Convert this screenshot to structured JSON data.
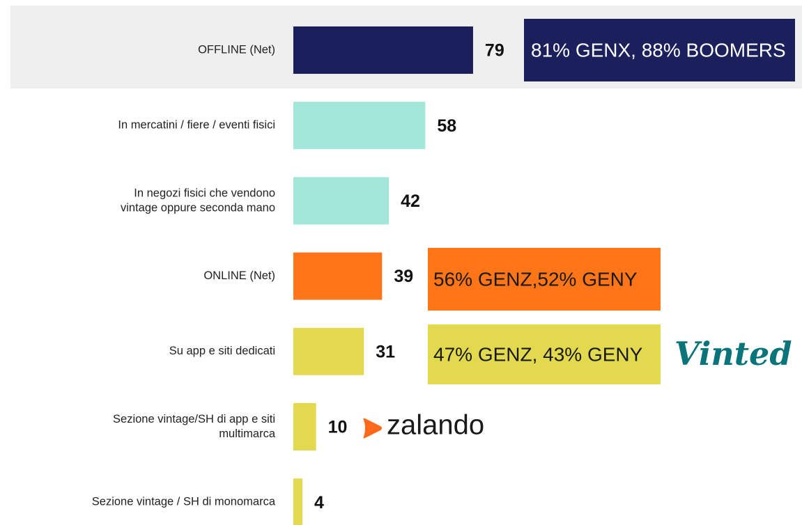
{
  "chart_data": {
    "type": "bar",
    "orientation": "horizontal",
    "categories": [
      [
        "OFFLINE (Net)"
      ],
      [
        "In mercatini / fiere / eventi fisici"
      ],
      [
        "In negozi fisici che vendono",
        "vintage oppure seconda mano"
      ],
      [
        "ONLINE (Net)"
      ],
      [
        "Su app e siti dedicati"
      ],
      [
        "Sezione vintage/SH di app e siti",
        "multimarca"
      ],
      [
        "Sezione vintage / SH di monomarca"
      ]
    ],
    "values": [
      79,
      58,
      42,
      39,
      31,
      10,
      4
    ],
    "colors": [
      "#1b1f5c",
      "#a3e6da",
      "#a3e6da",
      "#ff7518",
      "#e2d94f",
      "#e2d94f",
      "#e2d94f"
    ],
    "annotations": [
      {
        "text": "81% GENX, 88% BOOMERS",
        "color": "#1b1f5c",
        "text_color": "#ffffff"
      },
      {
        "text": "56% GENZ,52% GENY",
        "color": "#ff7518",
        "text_color": "#1a1a1a"
      },
      {
        "text": "47% GENZ, 43% GENY",
        "color": "#e2d94f",
        "text_color": "#1a1a1a"
      }
    ],
    "logos": [
      {
        "text": "Vinted",
        "color": "#09757a"
      },
      {
        "text": "zalando",
        "color": "#1a1a1a",
        "icon_color": "#ff6a1a"
      }
    ]
  }
}
